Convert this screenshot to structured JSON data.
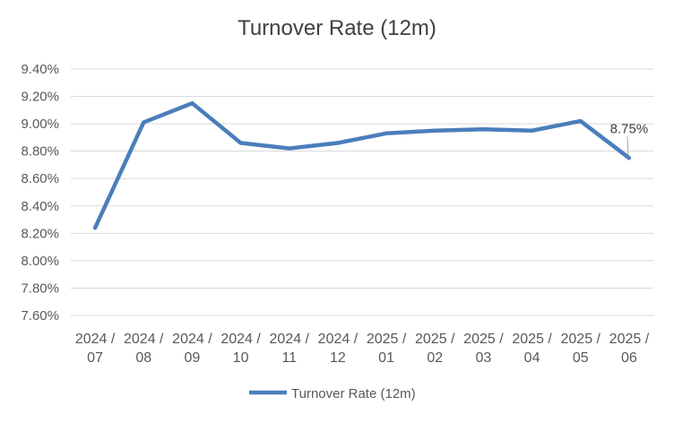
{
  "chart_data": {
    "type": "line",
    "title": "Turnover Rate (12m)",
    "xlabel": "",
    "ylabel": "",
    "categories": [
      [
        "2024 /",
        "07"
      ],
      [
        "2024 /",
        "08"
      ],
      [
        "2024 /",
        "09"
      ],
      [
        "2024 /",
        "10"
      ],
      [
        "2024 /",
        "11"
      ],
      [
        "2024 /",
        "12"
      ],
      [
        "2025 /",
        "01"
      ],
      [
        "2025 /",
        "02"
      ],
      [
        "2025 /",
        "03"
      ],
      [
        "2025 /",
        "04"
      ],
      [
        "2025 /",
        "05"
      ],
      [
        "2025 /",
        "06"
      ]
    ],
    "series": [
      {
        "name": "Turnover Rate (12m)",
        "color": "#4a7ebb",
        "values": [
          8.24,
          9.01,
          9.15,
          8.86,
          8.82,
          8.86,
          8.93,
          8.95,
          8.96,
          8.95,
          9.02,
          8.75
        ]
      }
    ],
    "ylim": [
      7.6,
      9.4
    ],
    "yticks": [
      "7.60%",
      "7.80%",
      "8.00%",
      "8.20%",
      "8.40%",
      "8.60%",
      "8.80%",
      "9.00%",
      "9.20%",
      "9.40%"
    ],
    "data_labels": [
      {
        "index": 11,
        "text": "8.75%"
      }
    ],
    "grid": true,
    "legend": "bottom"
  }
}
